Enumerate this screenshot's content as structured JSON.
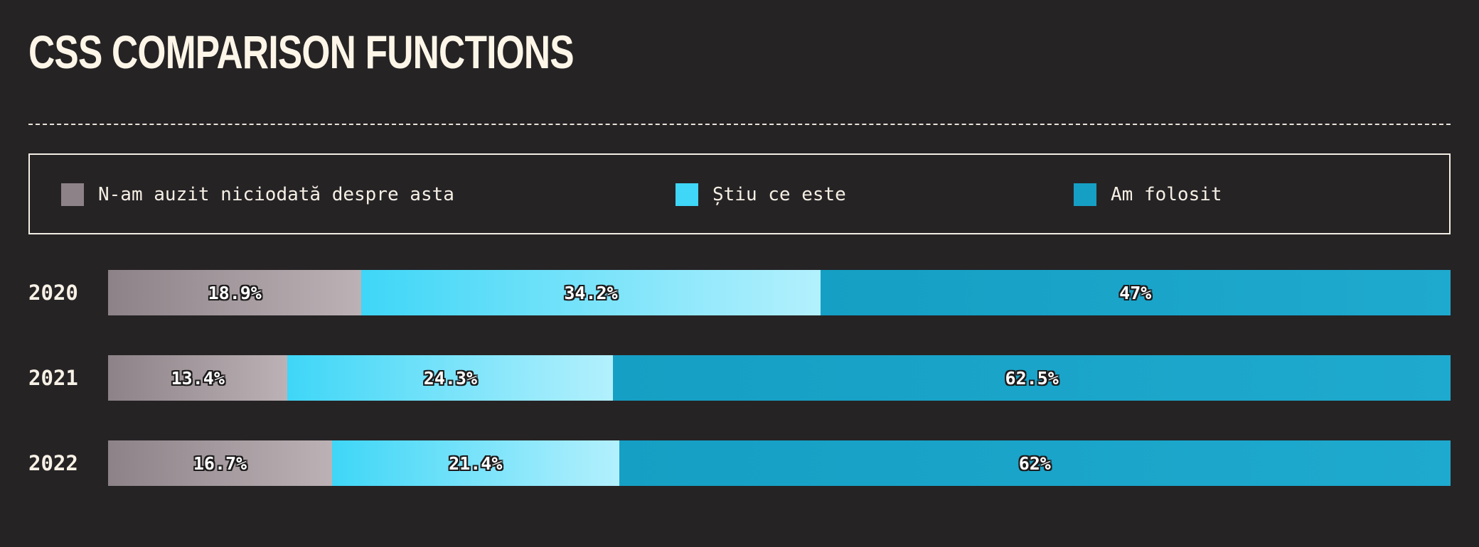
{
  "title": "CSS COMPARISON FUNCTIONS",
  "legend": [
    {
      "label": "N-am auzit niciodată despre asta",
      "color": "#8c8287"
    },
    {
      "label": "Știu ce este",
      "color": "#3fd6f7"
    },
    {
      "label": "Am folosit",
      "color": "#169fc4"
    }
  ],
  "chart_data": {
    "type": "bar",
    "stacked": true,
    "orientation": "horizontal",
    "normalized": true,
    "categories": [
      "2020",
      "2021",
      "2022"
    ],
    "series": [
      {
        "name": "N-am auzit niciodată despre asta",
        "values": [
          18.9,
          13.4,
          16.7
        ],
        "labels": [
          "18.9%",
          "13.4%",
          "16.7%"
        ],
        "gradient": [
          "#8c8287",
          "#bcb2b6"
        ]
      },
      {
        "name": "Știu ce este",
        "values": [
          34.2,
          24.3,
          21.4
        ],
        "labels": [
          "34.2%",
          "24.3%",
          "21.4%"
        ],
        "gradient": [
          "#3fd6f7",
          "#b3f0fd"
        ]
      },
      {
        "name": "Am folosit",
        "values": [
          47,
          62.5,
          62
        ],
        "labels": [
          "47%",
          "62.5%",
          "62%"
        ],
        "gradient": [
          "#169fc4",
          "#1ea9ce"
        ]
      }
    ],
    "title": "CSS COMPARISON FUNCTIONS",
    "legend_position": "top",
    "grid": false
  }
}
